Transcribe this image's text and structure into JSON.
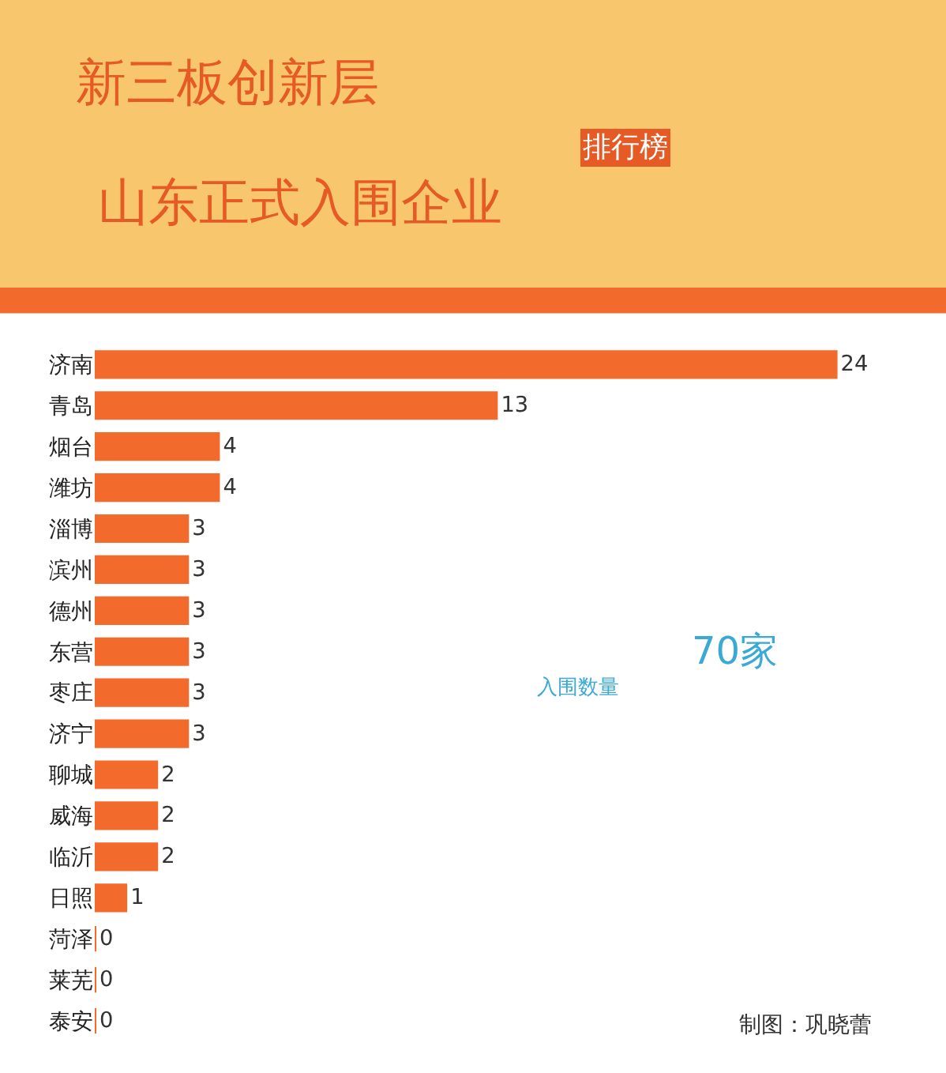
{
  "chart_data": {
    "type": "bar",
    "orientation": "horizontal",
    "title": "新三板创新层",
    "subtitle": "山东正式入围企业",
    "categories": [
      "济南",
      "青岛",
      "烟台",
      "潍坊",
      "淄博",
      "滨州",
      "德州",
      "东营",
      "枣庄",
      "济宁",
      "聊城",
      "威海",
      "临沂",
      "日照",
      "菏泽",
      "莱芜",
      "泰安"
    ],
    "values": [
      24,
      13,
      4,
      4,
      3,
      3,
      3,
      3,
      3,
      3,
      2,
      2,
      2,
      1,
      0,
      0,
      0
    ],
    "color": "#f26a2c",
    "data_labels": true,
    "tick_labels": "y",
    "annotations": [
      "排行榜",
      "入围数量",
      "70家",
      "制图：巩晓蕾"
    ]
  }
}
